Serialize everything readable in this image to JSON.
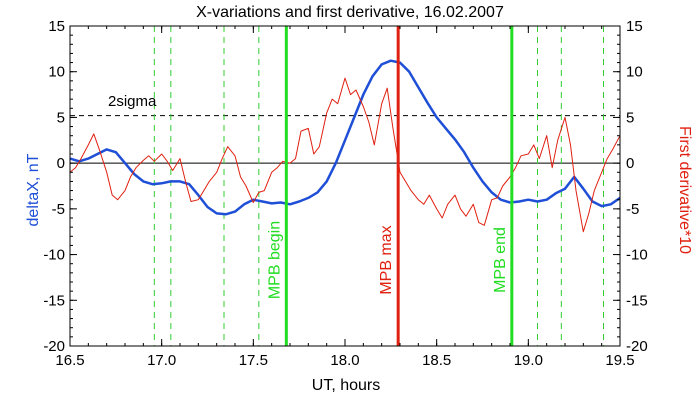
{
  "chart_data": {
    "type": "line",
    "title": "X-variations and first derivative, 16.02.2007",
    "xlabel": "UT, hours",
    "ylabel_left": "deltaX, nT",
    "ylabel_right": "First derivative*10",
    "xlim": [
      16.5,
      19.5
    ],
    "ylim": [
      -20,
      15
    ],
    "ylim_right": [
      -20,
      15
    ],
    "x_ticks": [
      "16.5",
      "17.0",
      "17.5",
      "18.0",
      "18.5",
      "19.0",
      "19.5"
    ],
    "y_ticks": [
      "15",
      "10",
      "5",
      "0",
      "-5",
      "-10",
      "-15",
      "-20"
    ],
    "threshold": {
      "label": "2sigma",
      "value": 5.2,
      "style": "dashed"
    },
    "zero_line": 0,
    "dashed_verticals_x": [
      16.96,
      17.05,
      17.34,
      17.53,
      19.05,
      19.18,
      19.41
    ],
    "markers": [
      {
        "label": "MPB begin",
        "x": 17.68,
        "color": "#22dd22"
      },
      {
        "label": "MPB max",
        "x": 18.29,
        "color": "#e02010"
      },
      {
        "label": "MPB end",
        "x": 18.91,
        "color": "#22dd22"
      }
    ],
    "colors": {
      "deltaX": "#1f4fd6",
      "derivative": "#e02010",
      "dashed_vertical": "#33cc33"
    },
    "series": [
      {
        "key": "deltaX",
        "axis": "left",
        "x": [
          16.5,
          16.55,
          16.6,
          16.65,
          16.7,
          16.75,
          16.8,
          16.85,
          16.9,
          16.95,
          17.0,
          17.05,
          17.1,
          17.15,
          17.2,
          17.25,
          17.3,
          17.35,
          17.4,
          17.45,
          17.5,
          17.55,
          17.6,
          17.65,
          17.7,
          17.75,
          17.8,
          17.85,
          17.9,
          17.95,
          18.0,
          18.05,
          18.1,
          18.15,
          18.2,
          18.25,
          18.3,
          18.35,
          18.4,
          18.45,
          18.5,
          18.55,
          18.6,
          18.65,
          18.7,
          18.75,
          18.8,
          18.85,
          18.9,
          18.95,
          19.0,
          19.05,
          19.1,
          19.15,
          19.2,
          19.25,
          19.3,
          19.35,
          19.4,
          19.45,
          19.5
        ],
        "y": [
          0.5,
          0.2,
          0.5,
          1.0,
          1.5,
          1.2,
          0.0,
          -1.2,
          -2.0,
          -2.3,
          -2.2,
          -2.0,
          -2.0,
          -2.3,
          -3.5,
          -4.8,
          -5.5,
          -5.6,
          -5.3,
          -4.5,
          -4.0,
          -4.2,
          -4.4,
          -4.3,
          -4.5,
          -4.2,
          -3.8,
          -3.2,
          -2.0,
          0.0,
          2.5,
          5.0,
          7.5,
          9.5,
          10.8,
          11.2,
          11.0,
          10.0,
          8.3,
          6.6,
          5.0,
          3.8,
          2.6,
          1.2,
          -0.5,
          -2.0,
          -3.2,
          -4.0,
          -4.3,
          -4.2,
          -4.0,
          -4.2,
          -4.0,
          -3.3,
          -2.8,
          -1.5,
          -2.8,
          -4.2,
          -4.7,
          -4.5,
          -3.8
        ]
      },
      {
        "key": "derivative",
        "axis": "right",
        "x": [
          16.5,
          16.53,
          16.56,
          16.6,
          16.63,
          16.66,
          16.7,
          16.73,
          16.76,
          16.8,
          16.83,
          16.86,
          16.9,
          16.93,
          16.96,
          17.0,
          17.03,
          17.06,
          17.1,
          17.13,
          17.16,
          17.2,
          17.23,
          17.26,
          17.3,
          17.33,
          17.36,
          17.4,
          17.43,
          17.46,
          17.5,
          17.53,
          17.56,
          17.6,
          17.63,
          17.66,
          17.7,
          17.73,
          17.76,
          17.8,
          17.83,
          17.86,
          17.9,
          17.93,
          17.96,
          18.0,
          18.03,
          18.06,
          18.1,
          18.13,
          18.16,
          18.2,
          18.23,
          18.26,
          18.3,
          18.33,
          18.36,
          18.4,
          18.43,
          18.46,
          18.5,
          18.53,
          18.56,
          18.6,
          18.63,
          18.66,
          18.7,
          18.73,
          18.76,
          18.8,
          18.83,
          18.86,
          18.9,
          18.93,
          18.96,
          19.0,
          19.03,
          19.06,
          19.1,
          19.13,
          19.16,
          19.2,
          19.23,
          19.26,
          19.3,
          19.33,
          19.36,
          19.4,
          19.43,
          19.46,
          19.5
        ],
        "y": [
          -1.0,
          -0.5,
          0.5,
          2.0,
          3.2,
          1.5,
          -1.0,
          -3.5,
          -4.0,
          -3.0,
          -1.5,
          -0.5,
          0.3,
          0.8,
          0.2,
          1.0,
          0.2,
          -0.8,
          0.5,
          -2.0,
          -4.2,
          -4.0,
          -3.0,
          -2.0,
          -1.0,
          0.5,
          1.8,
          0.8,
          -1.5,
          -2.5,
          -4.3,
          -3.2,
          -3.0,
          -1.0,
          -0.5,
          0.2,
          0.0,
          0.5,
          3.5,
          3.8,
          1.0,
          1.8,
          5.5,
          7.0,
          6.5,
          9.3,
          7.5,
          8.0,
          6.2,
          4.5,
          2.0,
          6.5,
          8.2,
          4.0,
          -1.0,
          -2.0,
          -3.0,
          -4.0,
          -4.5,
          -3.5,
          -5.0,
          -6.0,
          -4.5,
          -3.5,
          -5.0,
          -5.8,
          -4.5,
          -6.5,
          -6.8,
          -4.0,
          -3.8,
          -2.5,
          -1.5,
          -0.5,
          0.8,
          1.0,
          2.0,
          0.5,
          3.0,
          -0.5,
          2.5,
          5.0,
          2.0,
          -3.0,
          -7.5,
          -5.5,
          -3.0,
          -1.0,
          0.5,
          1.5,
          3.0
        ]
      }
    ]
  }
}
